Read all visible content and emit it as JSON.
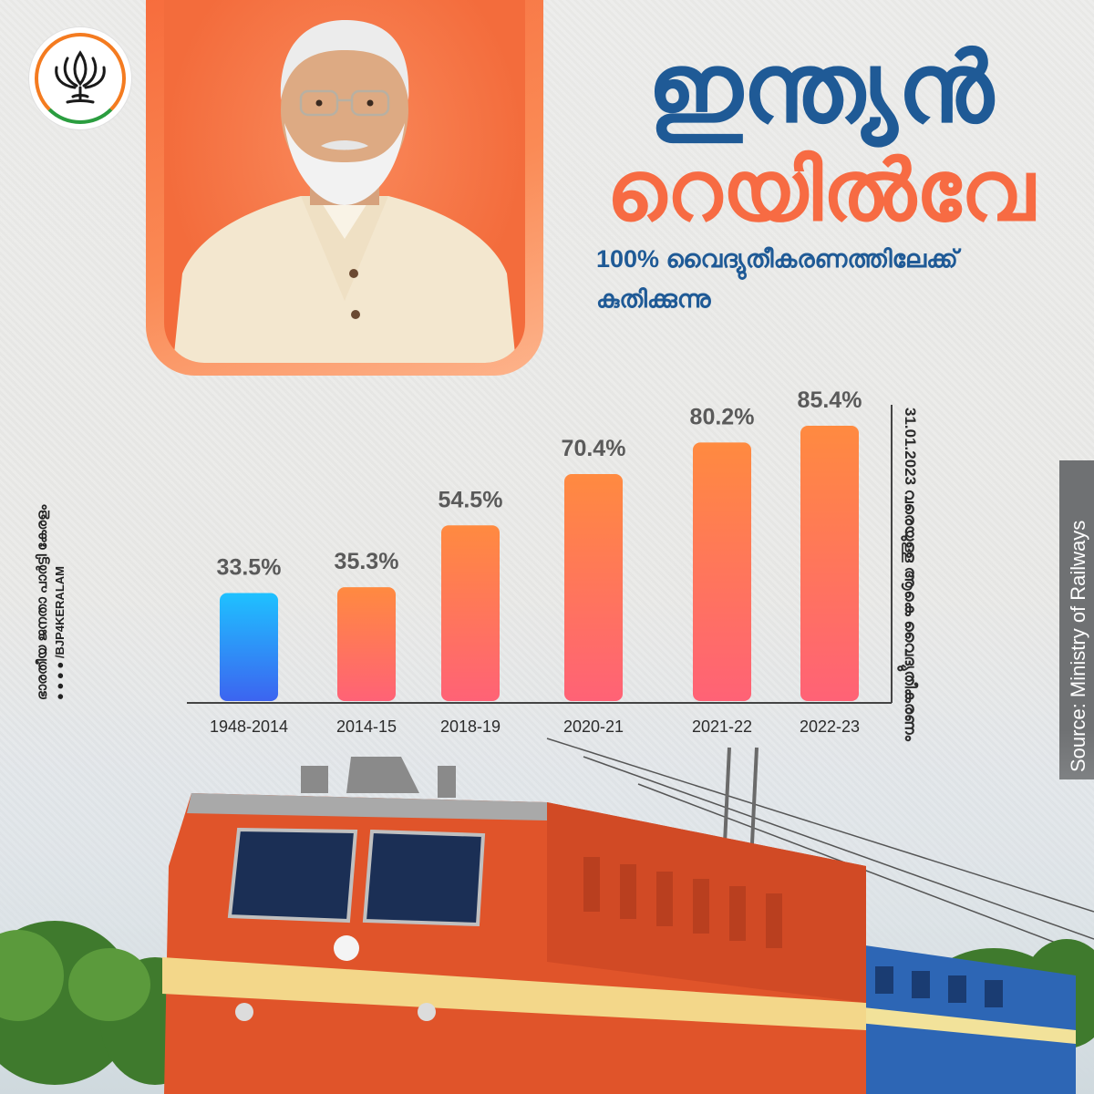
{
  "heading": {
    "line1": "ഇന്ത്യൻ",
    "line2": "റെയിൽവേ",
    "subtitle_1": "100% വൈദ്യുതീകരണത്തിലേക്ക്",
    "subtitle_2": "കുതിക്കുന്നു"
  },
  "side_note": {
    "party": "ഭാരതീയ ജനതാ പാർട്ടി കേരളം",
    "handle": "/BJP4KERALAM"
  },
  "source": "Source: Ministry of Railways",
  "vertical_caption": "31.01.2023 വരെയുള്ള ആകെ വൈദ്യുതീകരണം",
  "colors": {
    "blue_bar_top": "#1fc1ff",
    "blue_bar_bottom": "#3c64f0",
    "orange_bar_top": "#ff8a40",
    "orange_bar_bottom": "#ff6276",
    "heading_blue": "#1f5a96",
    "heading_orange": "#f76b43"
  },
  "chart_data": {
    "type": "bar",
    "categories": [
      "1948-2014",
      "2014-15",
      "2018-19",
      "2020-21",
      "2021-22",
      "2022-23"
    ],
    "values": [
      33.5,
      35.3,
      54.5,
      70.4,
      80.2,
      85.4
    ],
    "value_labels": [
      "33.5%",
      "35.3%",
      "54.5%",
      "70.4%",
      "80.2%",
      "85.4%"
    ],
    "ylim": [
      0,
      100
    ],
    "grid": false,
    "legend": "none",
    "xlabel": "",
    "ylabel": ""
  }
}
